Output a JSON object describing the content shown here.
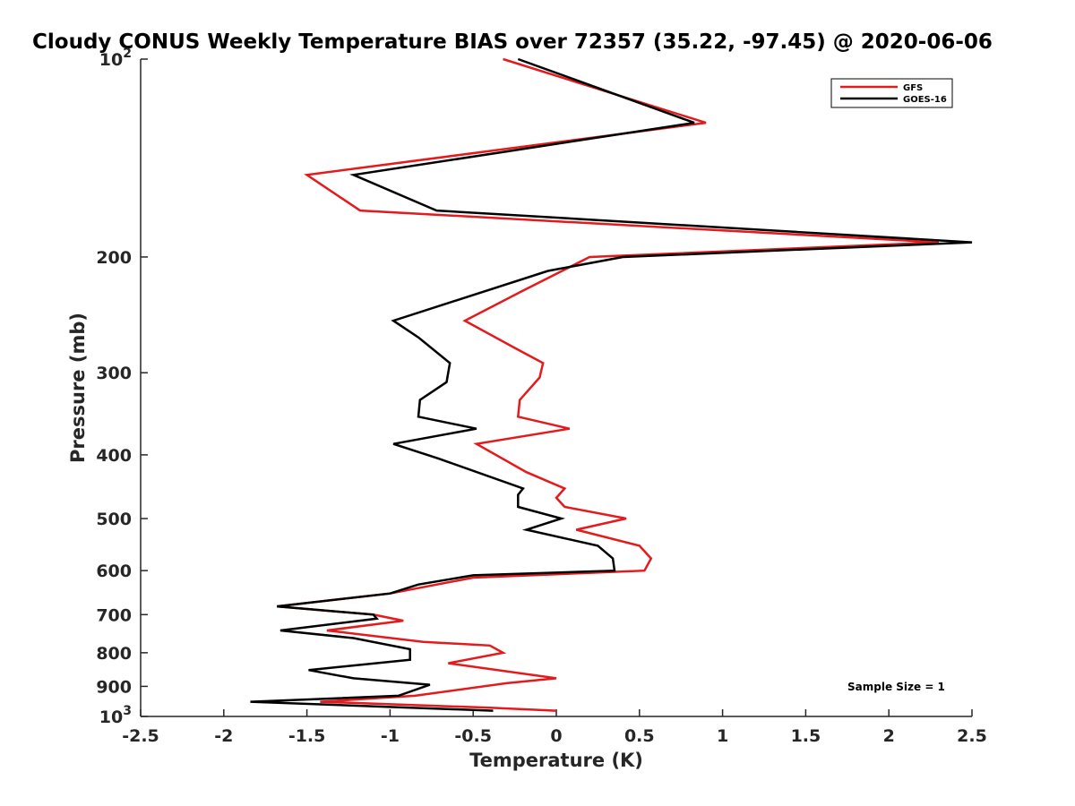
{
  "chart_data": {
    "type": "line",
    "title": "Cloudy CONUS Weekly Temperature BIAS over 72357 (35.22, -97.45) @ 2020-06-06",
    "xlabel": "Temperature (K)",
    "ylabel": "Pressure (mb)",
    "xlim": [
      -2.5,
      2.5
    ],
    "ylim": [
      100,
      1000
    ],
    "y_scale": "log",
    "y_reversed": true,
    "x_ticks": [
      "-2.5",
      "-2",
      "-1.5",
      "-1",
      "-0.5",
      "0",
      "0.5",
      "1",
      "1.5",
      "2",
      "2.5"
    ],
    "y_ticks": [
      {
        "value": 100,
        "base": "10",
        "exp": "2"
      },
      {
        "value": 200,
        "label": "200"
      },
      {
        "value": 300,
        "label": "300"
      },
      {
        "value": 400,
        "label": "400"
      },
      {
        "value": 500,
        "label": "500"
      },
      {
        "value": 600,
        "label": "600"
      },
      {
        "value": 700,
        "label": "700"
      },
      {
        "value": 800,
        "label": "800"
      },
      {
        "value": 900,
        "label": "900"
      },
      {
        "value": 1000,
        "base": "10",
        "exp": "3"
      }
    ],
    "grid": false,
    "legend_position": "top-right",
    "annotation": "Sample Size = 1",
    "series": [
      {
        "name": "GFS",
        "color": "#e41a1c",
        "points": [
          [
            -0.32,
            100
          ],
          [
            0.9,
            125
          ],
          [
            -1.5,
            150
          ],
          [
            -1.18,
            170
          ],
          [
            2.3,
            190
          ],
          [
            0.2,
            200
          ],
          [
            -0.2,
            225
          ],
          [
            -0.55,
            250
          ],
          [
            -0.25,
            275
          ],
          [
            -0.08,
            290
          ],
          [
            -0.1,
            305
          ],
          [
            -0.22,
            330
          ],
          [
            -0.23,
            350
          ],
          [
            0.08,
            365
          ],
          [
            -0.48,
            385
          ],
          [
            -0.18,
            425
          ],
          [
            0.05,
            450
          ],
          [
            0.0,
            465
          ],
          [
            0.05,
            480
          ],
          [
            0.42,
            500
          ],
          [
            0.12,
            520
          ],
          [
            0.5,
            550
          ],
          [
            0.57,
            575
          ],
          [
            0.53,
            600
          ],
          [
            -0.5,
            615
          ],
          [
            -1.0,
            650
          ],
          [
            -1.68,
            680
          ],
          [
            -1.1,
            700
          ],
          [
            -0.92,
            715
          ],
          [
            -1.38,
            740
          ],
          [
            -0.8,
            770
          ],
          [
            -0.4,
            780
          ],
          [
            -0.32,
            800
          ],
          [
            -0.65,
            830
          ],
          [
            0.0,
            875
          ],
          [
            -0.3,
            890
          ],
          [
            -0.85,
            930
          ],
          [
            -1.42,
            950
          ],
          [
            -0.4,
            970
          ],
          [
            0.0,
            980
          ]
        ]
      },
      {
        "name": "GOES-16",
        "color": "#000000",
        "points": [
          [
            -0.23,
            100
          ],
          [
            0.83,
            125
          ],
          [
            -1.22,
            150
          ],
          [
            -0.72,
            170
          ],
          [
            2.5,
            190
          ],
          [
            0.4,
            200
          ],
          [
            -0.05,
            210
          ],
          [
            -0.98,
            250
          ],
          [
            -0.83,
            265
          ],
          [
            -0.64,
            290
          ],
          [
            -0.66,
            310
          ],
          [
            -0.82,
            330
          ],
          [
            -0.83,
            350
          ],
          [
            -0.48,
            365
          ],
          [
            -0.98,
            385
          ],
          [
            -0.71,
            405
          ],
          [
            -0.2,
            450
          ],
          [
            -0.23,
            460
          ],
          [
            -0.23,
            480
          ],
          [
            0.03,
            500
          ],
          [
            -0.18,
            520
          ],
          [
            0.25,
            550
          ],
          [
            0.34,
            575
          ],
          [
            0.35,
            600
          ],
          [
            -0.5,
            610
          ],
          [
            -0.83,
            630
          ],
          [
            -1.0,
            650
          ],
          [
            -1.68,
            680
          ],
          [
            -1.1,
            700
          ],
          [
            -1.08,
            710
          ],
          [
            -1.66,
            740
          ],
          [
            -1.22,
            760
          ],
          [
            -0.88,
            790
          ],
          [
            -0.88,
            820
          ],
          [
            -1.49,
            850
          ],
          [
            -1.22,
            875
          ],
          [
            -0.76,
            895
          ],
          [
            -0.95,
            930
          ],
          [
            -1.84,
            950
          ],
          [
            -0.38,
            980
          ]
        ]
      }
    ]
  }
}
